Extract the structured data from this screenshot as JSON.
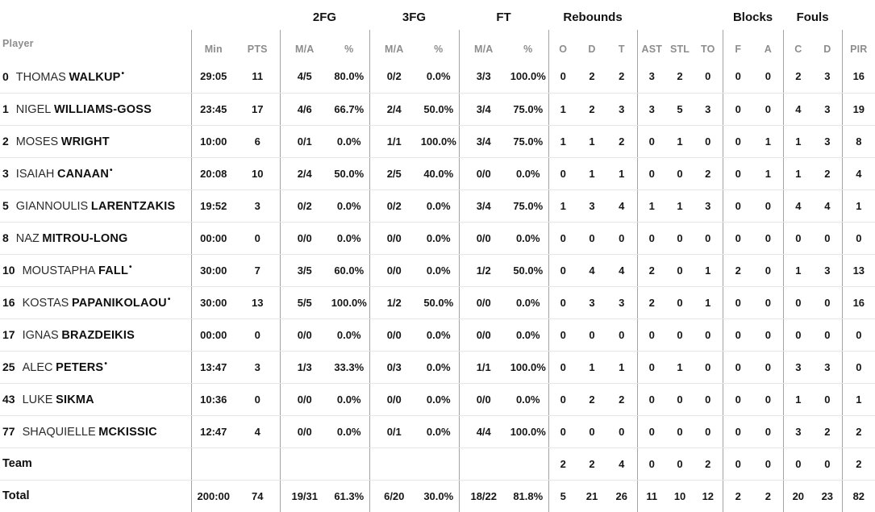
{
  "colors": {
    "body_text": "#161616",
    "header_text": "#8d8d8d",
    "divider": "#a3a3a3",
    "row_line": "#e6e6e6"
  },
  "table": {
    "groups": {
      "fg2": "2FG",
      "fg3": "3FG",
      "ft": "FT",
      "rebounds": "Rebounds",
      "blocks": "Blocks",
      "fouls": "Fouls"
    },
    "cols": {
      "player": "Player",
      "min": "Min",
      "pts": "PTS",
      "ma": "M/A",
      "pct": "%",
      "o": "O",
      "d": "D",
      "t": "T",
      "ast": "AST",
      "stl": "STL",
      "to": "TO",
      "f": "F",
      "a": "A",
      "c": "C",
      "pir": "PIR"
    },
    "stat_keys": [
      "min",
      "pts",
      "2fg-ma",
      "2fg-pct",
      "3fg-ma",
      "3fg-pct",
      "ft-ma",
      "ft-pct",
      "reb-o",
      "reb-d",
      "reb-t",
      "ast",
      "stl",
      "to",
      "blk-f",
      "blk-a",
      "foul-c",
      "foul-d",
      "pir"
    ],
    "rows": [
      {
        "no": "0",
        "first": "THOMAS",
        "last": "WALKUP",
        "starter": true,
        "stats": [
          "29:05",
          "11",
          "4/5",
          "80.0%",
          "0/2",
          "0.0%",
          "3/3",
          "100.0%",
          "0",
          "2",
          "2",
          "3",
          "2",
          "0",
          "0",
          "0",
          "2",
          "3",
          "16"
        ]
      },
      {
        "no": "1",
        "first": "NIGEL",
        "last": "WILLIAMS-GOSS",
        "starter": false,
        "stats": [
          "23:45",
          "17",
          "4/6",
          "66.7%",
          "2/4",
          "50.0%",
          "3/4",
          "75.0%",
          "1",
          "2",
          "3",
          "3",
          "5",
          "3",
          "0",
          "0",
          "4",
          "3",
          "19"
        ]
      },
      {
        "no": "2",
        "first": "MOSES",
        "last": "WRIGHT",
        "starter": false,
        "stats": [
          "10:00",
          "6",
          "0/1",
          "0.0%",
          "1/1",
          "100.0%",
          "3/4",
          "75.0%",
          "1",
          "1",
          "2",
          "0",
          "1",
          "0",
          "0",
          "1",
          "1",
          "3",
          "8"
        ]
      },
      {
        "no": "3",
        "first": "ISAIAH",
        "last": "CANAAN",
        "starter": true,
        "stats": [
          "20:08",
          "10",
          "2/4",
          "50.0%",
          "2/5",
          "40.0%",
          "0/0",
          "0.0%",
          "0",
          "1",
          "1",
          "0",
          "0",
          "2",
          "0",
          "1",
          "1",
          "2",
          "4"
        ]
      },
      {
        "no": "5",
        "first": "GIANNOULIS",
        "last": "LARENTZAKIS",
        "starter": false,
        "stats": [
          "19:52",
          "3",
          "0/2",
          "0.0%",
          "0/2",
          "0.0%",
          "3/4",
          "75.0%",
          "1",
          "3",
          "4",
          "1",
          "1",
          "3",
          "0",
          "0",
          "4",
          "4",
          "1"
        ]
      },
      {
        "no": "8",
        "first": "NAZ",
        "last": "MITROU-LONG",
        "starter": false,
        "stats": [
          "00:00",
          "0",
          "0/0",
          "0.0%",
          "0/0",
          "0.0%",
          "0/0",
          "0.0%",
          "0",
          "0",
          "0",
          "0",
          "0",
          "0",
          "0",
          "0",
          "0",
          "0",
          "0"
        ]
      },
      {
        "no": "10",
        "first": "MOUSTAPHA",
        "last": "FALL",
        "starter": true,
        "stats": [
          "30:00",
          "7",
          "3/5",
          "60.0%",
          "0/0",
          "0.0%",
          "1/2",
          "50.0%",
          "0",
          "4",
          "4",
          "2",
          "0",
          "1",
          "2",
          "0",
          "1",
          "3",
          "13"
        ]
      },
      {
        "no": "16",
        "first": "KOSTAS",
        "last": "PAPANIKOLAOU",
        "starter": true,
        "stats": [
          "30:00",
          "13",
          "5/5",
          "100.0%",
          "1/2",
          "50.0%",
          "0/0",
          "0.0%",
          "0",
          "3",
          "3",
          "2",
          "0",
          "1",
          "0",
          "0",
          "0",
          "0",
          "16"
        ]
      },
      {
        "no": "17",
        "first": "IGNAS",
        "last": "BRAZDEIKIS",
        "starter": false,
        "stats": [
          "00:00",
          "0",
          "0/0",
          "0.0%",
          "0/0",
          "0.0%",
          "0/0",
          "0.0%",
          "0",
          "0",
          "0",
          "0",
          "0",
          "0",
          "0",
          "0",
          "0",
          "0",
          "0"
        ]
      },
      {
        "no": "25",
        "first": "ALEC",
        "last": "PETERS",
        "starter": true,
        "stats": [
          "13:47",
          "3",
          "1/3",
          "33.3%",
          "0/3",
          "0.0%",
          "1/1",
          "100.0%",
          "0",
          "1",
          "1",
          "0",
          "1",
          "0",
          "0",
          "0",
          "3",
          "3",
          "0"
        ]
      },
      {
        "no": "43",
        "first": "LUKE",
        "last": "SIKMA",
        "starter": false,
        "stats": [
          "10:36",
          "0",
          "0/0",
          "0.0%",
          "0/0",
          "0.0%",
          "0/0",
          "0.0%",
          "0",
          "2",
          "2",
          "0",
          "0",
          "0",
          "0",
          "0",
          "1",
          "0",
          "1"
        ]
      },
      {
        "no": "77",
        "first": "SHAQUIELLE",
        "last": "MCKISSIC",
        "starter": false,
        "stats": [
          "12:47",
          "4",
          "0/0",
          "0.0%",
          "0/1",
          "0.0%",
          "4/4",
          "100.0%",
          "0",
          "0",
          "0",
          "0",
          "0",
          "0",
          "0",
          "0",
          "3",
          "2",
          "2"
        ]
      },
      {
        "label": "Team",
        "stats": [
          "",
          "",
          "",
          "",
          "",
          "",
          "",
          "",
          "2",
          "2",
          "4",
          "0",
          "0",
          "2",
          "0",
          "0",
          "0",
          "0",
          "2"
        ]
      },
      {
        "label": "Total",
        "stats": [
          "200:00",
          "74",
          "19/31",
          "61.3%",
          "6/20",
          "30.0%",
          "18/22",
          "81.8%",
          "5",
          "21",
          "26",
          "11",
          "10",
          "12",
          "2",
          "2",
          "20",
          "23",
          "82"
        ]
      }
    ]
  }
}
